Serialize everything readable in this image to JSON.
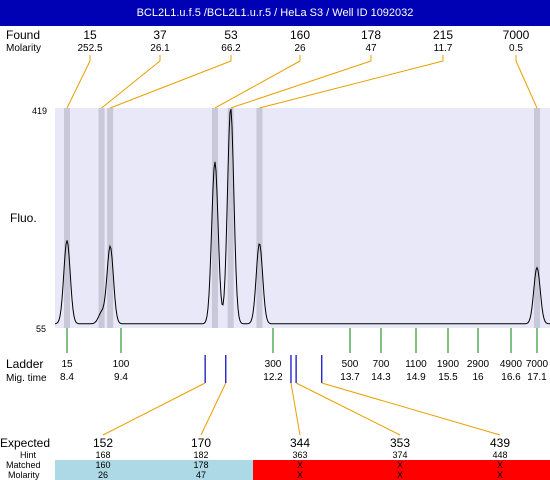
{
  "title": "BCL2L1.u.f.5 /BCL2L1.u.r.5 / HeLa S3 / Well ID 1092032",
  "row_labels": {
    "found": "Found",
    "molarity": "Molarity",
    "fluo": "Fluo.",
    "ladder": "Ladder",
    "mig_time": "Mig. time",
    "expected": "Expected",
    "hint": "Hint",
    "matched": "Matched",
    "molarity_bottom": "Molarity"
  },
  "colors": {
    "title_bg": "#0000b4",
    "plot_bg": "#e8e8f8",
    "band": "#c8c8d8",
    "found_line": "#e8a000",
    "ladder_tick": "#008000",
    "expected_tick": "#0000c0",
    "matched_bg": "#add8e6",
    "unmatched_bg": "#ff0000"
  },
  "chart_data": {
    "type": "line",
    "x_axis": "migration time",
    "ylim": [
      55,
      419
    ],
    "y_ticks": [
      "419",
      "55"
    ],
    "found_peaks": [
      {
        "size": "15",
        "molarity": "252.5",
        "mig_time": 8.4
      },
      {
        "size": "37",
        "molarity": "26.1",
        "mig_time": 9.04
      },
      {
        "size": "53",
        "molarity": "66.2",
        "mig_time": 9.2
      },
      {
        "size": "160",
        "molarity": "26",
        "mig_time": 11.13
      },
      {
        "size": "178",
        "molarity": "47",
        "mig_time": 11.42
      },
      {
        "size": "215",
        "molarity": "11.7",
        "mig_time": 11.95
      },
      {
        "size": "7000",
        "molarity": "0.5",
        "mig_time": 17.1
      }
    ],
    "signal_peaks": [
      {
        "mig_time": 8.4,
        "height": 200
      },
      {
        "mig_time": 9.04,
        "height": 80
      },
      {
        "mig_time": 9.2,
        "height": 190
      },
      {
        "mig_time": 11.13,
        "height": 330
      },
      {
        "mig_time": 11.42,
        "height": 419
      },
      {
        "mig_time": 11.95,
        "height": 195
      },
      {
        "mig_time": 17.1,
        "height": 155
      }
    ],
    "baseline": 62,
    "ladder": [
      {
        "size": "15",
        "mig_time": "8.4"
      },
      {
        "size": "100",
        "mig_time": "9.4"
      },
      {
        "size": "300",
        "mig_time": "12.2"
      },
      {
        "size": "500",
        "mig_time": "13.7"
      },
      {
        "size": "700",
        "mig_time": "14.3"
      },
      {
        "size": "1100",
        "mig_time": "14.9"
      },
      {
        "size": "1900",
        "mig_time": "15.5"
      },
      {
        "size": "2900",
        "mig_time": "16"
      },
      {
        "size": "4900",
        "mig_time": "16.6"
      },
      {
        "size": "7000",
        "mig_time": "17.1"
      }
    ],
    "expected": [
      {
        "size": "152",
        "hint": "168",
        "matched": "160",
        "molarity": "26",
        "is_matched": true,
        "mig_time": 10.95
      },
      {
        "size": "170",
        "hint": "182",
        "matched": "178",
        "molarity": "47",
        "is_matched": true,
        "mig_time": 11.33
      },
      {
        "size": "344",
        "hint": "363",
        "matched": "X",
        "molarity": "X",
        "is_matched": false,
        "mig_time": 12.55
      },
      {
        "size": "353",
        "hint": "374",
        "matched": "X",
        "molarity": "X",
        "is_matched": false,
        "mig_time": 12.65
      },
      {
        "size": "439",
        "hint": "448",
        "matched": "X",
        "molarity": "X",
        "is_matched": false,
        "mig_time": 13.15
      }
    ]
  }
}
